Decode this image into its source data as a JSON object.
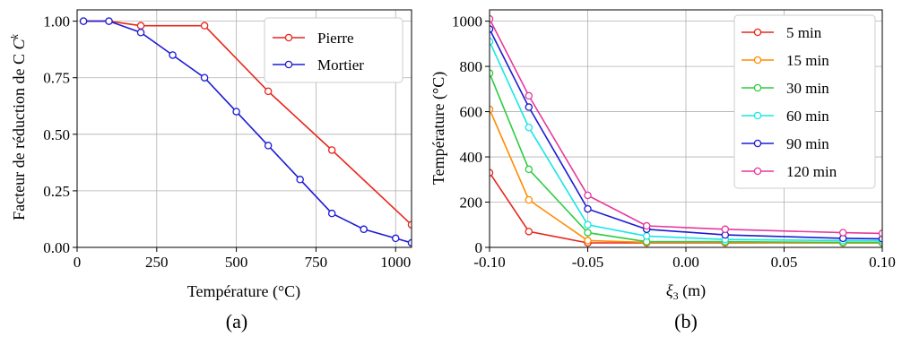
{
  "chart_data": [
    {
      "type": "line",
      "xlabel": "Température (°C)",
      "ylabel_text": "Facteur de réduction de C",
      "ylabel_superscript": "k",
      "xlim": [
        0,
        1050
      ],
      "ylim": [
        0,
        1.05
      ],
      "xticks": [
        0,
        250,
        500,
        750,
        1000
      ],
      "xtick_labels": [
        "0",
        "250",
        "500",
        "750",
        "1000"
      ],
      "yticks": [
        0,
        0.25,
        0.5,
        0.75,
        1.0
      ],
      "ytick_labels": [
        "0.00",
        "0.25",
        "0.50",
        "0.75",
        "1.00"
      ],
      "grid": true,
      "legend_position": "top-right",
      "panel_label": "(a)",
      "series": [
        {
          "name": "Pierre",
          "color": "#e8261c",
          "x": [
            20,
            100,
            200,
            400,
            600,
            800,
            1050
          ],
          "y": [
            1.0,
            1.0,
            0.98,
            0.98,
            0.69,
            0.43,
            0.1
          ]
        },
        {
          "name": "Mortier",
          "color": "#1b1bd6",
          "x": [
            20,
            100,
            200,
            300,
            400,
            500,
            600,
            700,
            800,
            900,
            1000,
            1050
          ],
          "y": [
            1.0,
            1.0,
            0.95,
            0.85,
            0.75,
            0.6,
            0.45,
            0.3,
            0.15,
            0.08,
            0.04,
            0.02
          ]
        }
      ]
    },
    {
      "type": "line",
      "xlabel_symbol": "ξ",
      "xlabel_subscript": "3",
      "xlabel_unit": " (m)",
      "ylabel": "Température (°C)",
      "xlim": [
        -0.1,
        0.1
      ],
      "ylim": [
        0,
        1050
      ],
      "xticks": [
        -0.1,
        -0.05,
        0.0,
        0.05,
        0.1
      ],
      "xtick_labels": [
        "-0.10",
        "-0.05",
        "0.00",
        "0.05",
        "0.10"
      ],
      "yticks": [
        0,
        200,
        400,
        600,
        800,
        1000
      ],
      "ytick_labels": [
        "0",
        "200",
        "400",
        "600",
        "800",
        "1000"
      ],
      "grid": true,
      "legend_position": "top-right",
      "panel_label": "(b)",
      "x": [
        -0.1,
        -0.08,
        -0.05,
        -0.02,
        0.02,
        0.08,
        0.1
      ],
      "series": [
        {
          "name": "5 min",
          "color": "#e8261c",
          "values": [
            330,
            70,
            20,
            20,
            20,
            20,
            20
          ]
        },
        {
          "name": "15 min",
          "color": "#ff8c00",
          "values": [
            610,
            210,
            30,
            22,
            22,
            20,
            20
          ]
        },
        {
          "name": "30 min",
          "color": "#2ecc40",
          "values": [
            770,
            345,
            65,
            25,
            25,
            22,
            22
          ]
        },
        {
          "name": "60 min",
          "color": "#19e6e6",
          "values": [
            910,
            530,
            100,
            50,
            35,
            30,
            30
          ]
        },
        {
          "name": "90 min",
          "color": "#1b1bd6",
          "values": [
            965,
            620,
            170,
            80,
            55,
            40,
            38
          ]
        },
        {
          "name": "120 min",
          "color": "#e6399b",
          "values": [
            1010,
            670,
            230,
            95,
            80,
            65,
            62
          ]
        }
      ]
    }
  ]
}
